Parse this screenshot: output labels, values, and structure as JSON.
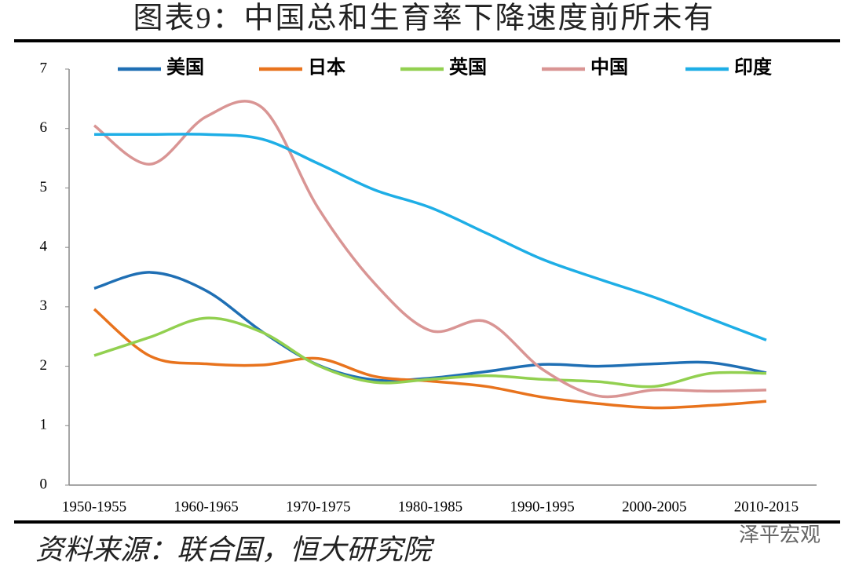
{
  "chart_data": {
    "type": "line",
    "title": "图表9：中国总和生育率下降速度前所未有",
    "source": "资料来源：联合国，恒大研究院",
    "watermark": "泽平宏观",
    "categories": [
      "1950-1955",
      null,
      "1960-1965",
      null,
      "1970-1975",
      null,
      "1980-1985",
      null,
      "1990-1995",
      null,
      "2000-2005",
      null,
      "2010-2015"
    ],
    "ylim": [
      0,
      7
    ],
    "yticks": [
      0,
      1,
      2,
      3,
      4,
      5,
      6,
      7
    ],
    "legend": "top",
    "series": [
      {
        "name": "美国",
        "color": "#1f6fb4",
        "values": [
          3.31,
          3.58,
          3.27,
          2.58,
          2.02,
          1.77,
          1.8,
          1.91,
          2.03,
          2.0,
          2.04,
          2.06,
          1.89
        ]
      },
      {
        "name": "日本",
        "color": "#e8731d",
        "values": [
          2.96,
          2.17,
          2.04,
          2.02,
          2.13,
          1.83,
          1.75,
          1.66,
          1.48,
          1.37,
          1.3,
          1.34,
          1.41
        ]
      },
      {
        "name": "英国",
        "color": "#92d050",
        "values": [
          2.18,
          2.49,
          2.81,
          2.57,
          2.01,
          1.73,
          1.78,
          1.84,
          1.78,
          1.74,
          1.66,
          1.88,
          1.88
        ]
      },
      {
        "name": "中国",
        "color": "#d99594",
        "values": [
          6.05,
          5.4,
          6.2,
          6.35,
          4.66,
          3.4,
          2.6,
          2.75,
          1.95,
          1.5,
          1.6,
          1.58,
          1.6
        ]
      },
      {
        "name": "印度",
        "color": "#1eaee6",
        "values": [
          5.9,
          5.9,
          5.9,
          5.82,
          5.41,
          4.97,
          4.67,
          4.24,
          3.8,
          3.47,
          3.16,
          2.8,
          2.44
        ]
      }
    ]
  }
}
